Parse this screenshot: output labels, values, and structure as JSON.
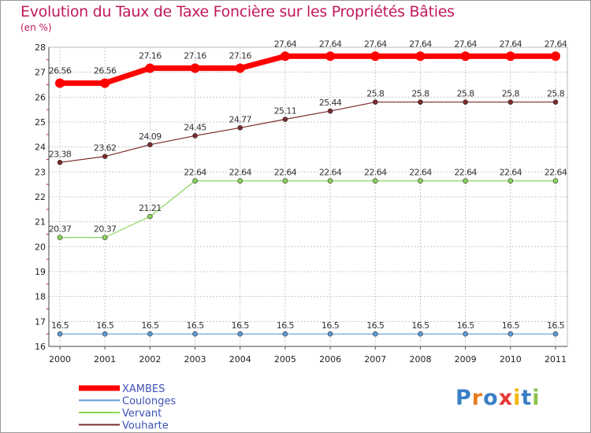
{
  "header": {
    "title": "Evolution du Taux de Taxe Foncière sur les Propriétés Bâties",
    "subtitle": "(en %)"
  },
  "logo": {
    "text": "Proxiti",
    "colors": [
      "#3a7fc4",
      "#e67e22",
      "#3a7fc4",
      "#e53935",
      "#f2b705",
      "#3a7fc4",
      "#8bc34a"
    ]
  },
  "chart_data": {
    "type": "line",
    "x": [
      "2000",
      "2001",
      "2002",
      "2003",
      "2004",
      "2005",
      "2006",
      "2007",
      "2008",
      "2009",
      "2010",
      "2011"
    ],
    "ylim": [
      16,
      28
    ],
    "yticks": [
      16,
      17,
      18,
      19,
      20,
      21,
      22,
      23,
      24,
      25,
      26,
      27,
      28
    ],
    "grid": true,
    "legend_position": "bottom-left",
    "series": [
      {
        "name": "XAMBES",
        "color": "#ff0000",
        "values": [
          26.56,
          26.56,
          27.16,
          27.16,
          27.16,
          27.64,
          27.64,
          27.64,
          27.64,
          27.64,
          27.64,
          27.64
        ],
        "labels": [
          "26.56",
          "26.56",
          "27.16",
          "27.16",
          "27.16",
          "27.64",
          "27.64",
          "27.64",
          "27.64",
          "27.64",
          "27.64",
          "27.64"
        ]
      },
      {
        "name": "Coulonges",
        "color": "#5b9bd5",
        "values": [
          16.5,
          16.5,
          16.5,
          16.5,
          16.5,
          16.5,
          16.5,
          16.5,
          16.5,
          16.5,
          16.5,
          16.5
        ],
        "labels": [
          "16.5",
          "16.5",
          "16.5",
          "16.5",
          "16.5",
          "16.5",
          "16.5",
          "16.5",
          "16.5",
          "16.5",
          "16.5",
          "16.5"
        ]
      },
      {
        "name": "Vervant",
        "color": "#8bd45a",
        "values": [
          20.37,
          20.37,
          21.21,
          22.64,
          22.64,
          22.64,
          22.64,
          22.64,
          22.64,
          22.64,
          22.64,
          22.64
        ],
        "labels": [
          "20.37",
          "20.37",
          "21.21",
          "22.64",
          "22.64",
          "22.64",
          "22.64",
          "22.64",
          "22.64",
          "22.64",
          "22.64",
          "22.64"
        ]
      },
      {
        "name": "Vouharte",
        "color": "#7b2a2a",
        "values": [
          23.38,
          23.62,
          24.09,
          24.45,
          24.77,
          25.11,
          25.44,
          25.8,
          25.8,
          25.8,
          25.8,
          25.8
        ],
        "labels": [
          "23.38",
          "23.62",
          "24.09",
          "24.45",
          "24.77",
          "25.11",
          "25.44",
          "25.8",
          "25.8",
          "25.8",
          "25.8",
          "25.8"
        ]
      }
    ]
  }
}
